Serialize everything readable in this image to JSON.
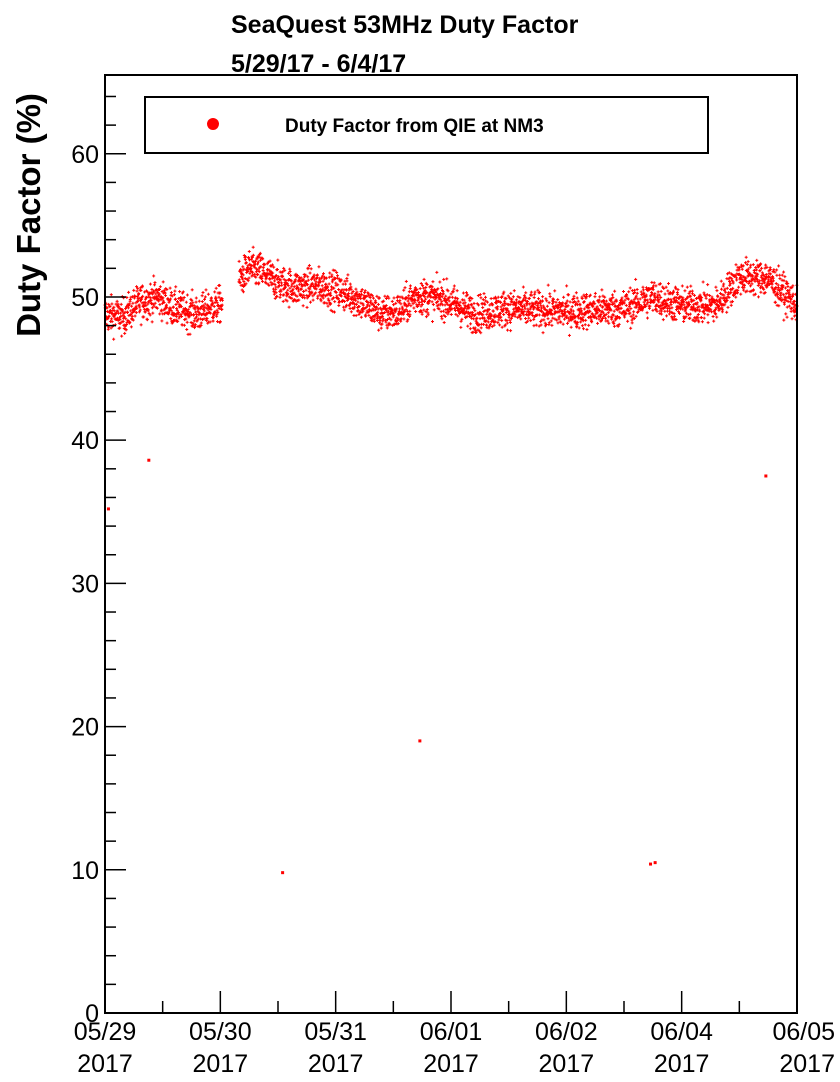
{
  "chart_data": {
    "type": "scatter",
    "title": "SeaQuest 53MHz Duty Factor",
    "subtitle": "5/29/17 - 6/4/17",
    "xlabel": "",
    "ylabel": "Duty Factor (%)",
    "ylim": [
      0,
      65.5
    ],
    "y_ticks": [
      "0",
      "10",
      "20",
      "30",
      "40",
      "50",
      "60"
    ],
    "x_tick_labels": [
      {
        "date": "05/29",
        "year": "2017"
      },
      {
        "date": "05/30",
        "year": "2017"
      },
      {
        "date": "05/31",
        "year": "2017"
      },
      {
        "date": "06/01",
        "year": "2017"
      },
      {
        "date": "06/02",
        "year": "2017"
      },
      {
        "date": "06/04",
        "year": "2017"
      },
      {
        "date": "06/05",
        "year": "2017"
      }
    ],
    "grid": false,
    "legend": {
      "position": "top",
      "entries": [
        "Duty Factor from QIE at NM3"
      ]
    },
    "marker_color": "#ff0000",
    "series": [
      {
        "name": "Duty Factor from QIE at NM3",
        "trend": [
          [
            0.0,
            48.8
          ],
          [
            0.15,
            48.6
          ],
          [
            0.3,
            49.6
          ],
          [
            0.45,
            50.0
          ],
          [
            0.6,
            49.2
          ],
          [
            0.8,
            48.8
          ],
          [
            1.0,
            49.5
          ],
          [
            1.15,
            51.0
          ],
          [
            1.25,
            52.0
          ],
          [
            1.35,
            51.8
          ],
          [
            1.5,
            51.0
          ],
          [
            1.65,
            50.6
          ],
          [
            1.8,
            50.8
          ],
          [
            2.0,
            50.5
          ],
          [
            2.15,
            50.0
          ],
          [
            2.4,
            48.8
          ],
          [
            2.55,
            49.0
          ],
          [
            2.7,
            50.1
          ],
          [
            2.95,
            49.8
          ],
          [
            3.2,
            48.8
          ],
          [
            3.5,
            49.2
          ],
          [
            4.0,
            49.0
          ],
          [
            4.5,
            49.2
          ],
          [
            4.75,
            50.0
          ],
          [
            5.0,
            49.4
          ],
          [
            5.3,
            49.4
          ],
          [
            5.5,
            51.4
          ],
          [
            5.75,
            51.3
          ],
          [
            6.0,
            49.4
          ]
        ],
        "outliers": [
          {
            "x": 0.03,
            "y": 35.2
          },
          {
            "x": 0.38,
            "y": 38.6
          },
          {
            "x": 1.54,
            "y": 9.8
          },
          {
            "x": 2.73,
            "y": 19.0
          },
          {
            "x": 4.73,
            "y": 10.4
          },
          {
            "x": 4.77,
            "y": 10.5
          },
          {
            "x": 5.73,
            "y": 37.5
          }
        ]
      }
    ]
  }
}
